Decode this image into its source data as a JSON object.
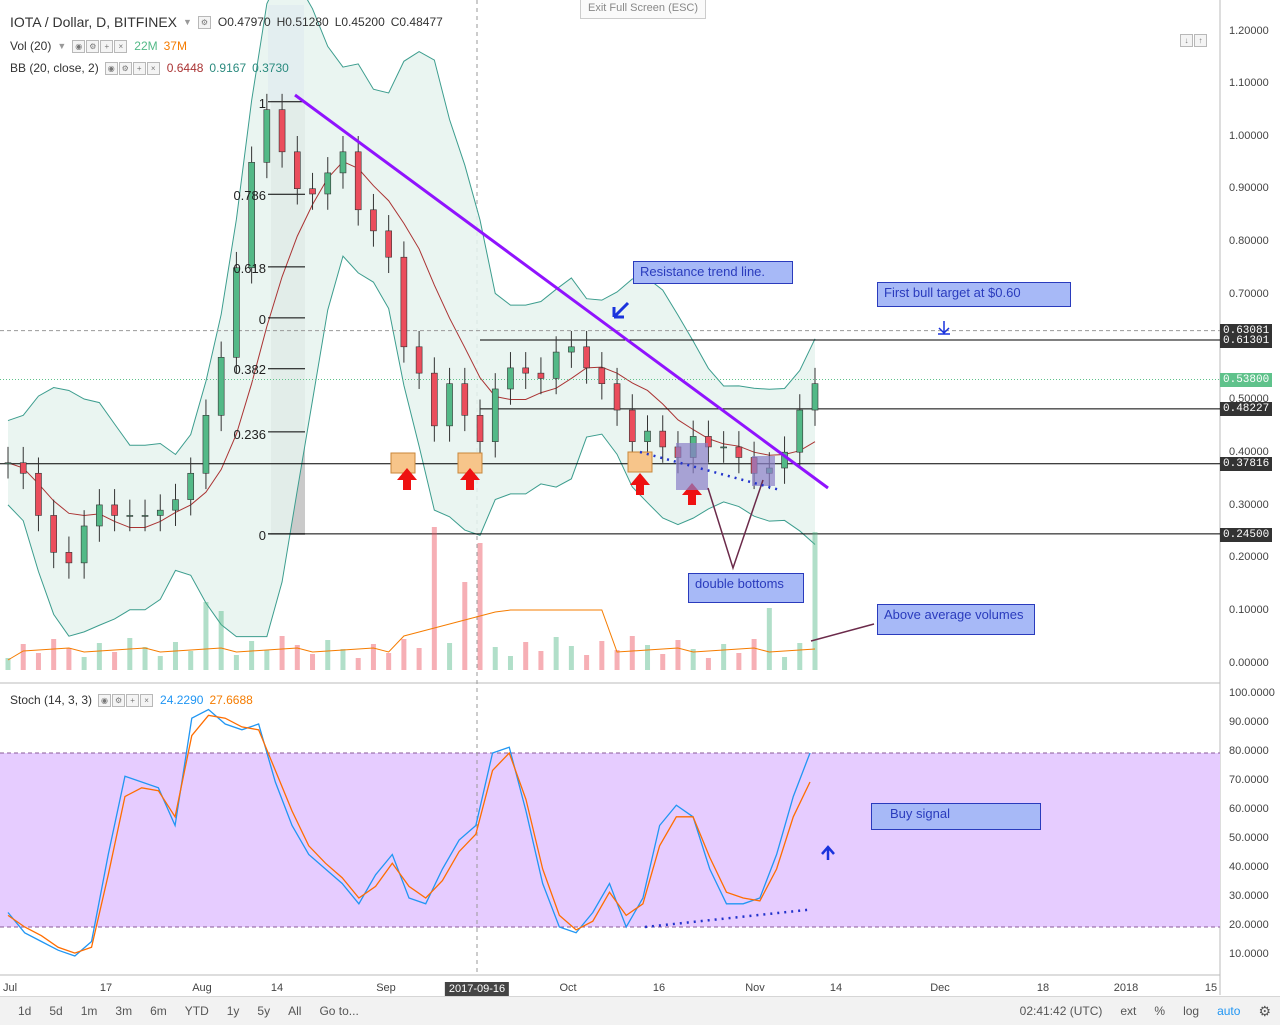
{
  "header": {
    "title": "IOTA / Dollar, D, BITFINEX",
    "open": "O0.47970",
    "high": "H0.51280",
    "low": "L0.45200",
    "close": "C0.48477",
    "vol_label": "Vol (20)",
    "vol_a": "22M",
    "vol_b": "37M",
    "bb_label": "BB (20, close, 2)",
    "bb_mid": "0.6448",
    "bb_up": "0.9167",
    "bb_low": "0.3730",
    "stoch_label": "Stoch (14, 3, 3)",
    "stoch_k": "24.2290",
    "stoch_d": "27.6688",
    "exit_fullscreen": "Exit Full Screen (ESC)"
  },
  "price_axis": {
    "ticks": [
      "1.20000",
      "1.10000",
      "1.00000",
      "0.90000",
      "0.80000",
      "0.70000",
      "0.50000",
      "0.40000",
      "0.30000",
      "0.20000",
      "0.10000",
      "0.00000"
    ],
    "boxes": [
      {
        "label": "0.63081",
        "color": "#333333"
      },
      {
        "label": "0.61301",
        "color": "#333333"
      },
      {
        "label": "0.53800",
        "color": "#5fc28b"
      },
      {
        "label": "0.48227",
        "color": "#333333"
      },
      {
        "label": "0.37816",
        "color": "#333333"
      },
      {
        "label": "0.24500",
        "color": "#333333"
      }
    ]
  },
  "stoch_axis": {
    "ticks": [
      "100.0000",
      "90.0000",
      "80.0000",
      "70.0000",
      "60.0000",
      "50.0000",
      "40.0000",
      "30.0000",
      "20.0000",
      "10.0000"
    ]
  },
  "time_axis": {
    "labels": [
      "Jul",
      "17",
      "Aug",
      "14",
      "Sep",
      "2017-09-16",
      "Oct",
      "16",
      "Nov",
      "14",
      "Dec",
      "18",
      "2018",
      "15"
    ]
  },
  "fib_labels": [
    "1",
    "0.786",
    "0.618",
    "0",
    "0.382",
    "0.236",
    "0"
  ],
  "annotations": {
    "resistance": "Resistance trend line.",
    "bull_target": "First bull target at $0.60",
    "double_bottoms": "double bottoms",
    "above_avg": "Above average volumes",
    "buy_signal": "Buy signal"
  },
  "bottom_bar": {
    "ranges": [
      "1d",
      "5d",
      "1m",
      "3m",
      "6m",
      "YTD",
      "1y",
      "5y",
      "All"
    ],
    "goto": "Go to...",
    "clock": "02:41:42 (UTC)",
    "ext": "ext",
    "pct": "%",
    "log": "log",
    "auto": "auto"
  },
  "colors": {
    "bull": "#53b987",
    "bear": "#eb4d5c",
    "trend": "#9013fe",
    "bb_fill": "#e6f3ee",
    "bb_line": "#3c9d8e",
    "stoch_k": "#2196f3",
    "stoch_d": "#ff6d00",
    "stoch_band": "#e6ccff",
    "annot": "#2a3bbd",
    "annot_fill": "#a7b9f7"
  },
  "chart_data": {
    "type": "candlestick",
    "title": "IOTA / Dollar, D, BITFINEX",
    "series": [
      {
        "name": "price_close_approx",
        "values": [
          0.38,
          0.36,
          0.28,
          0.21,
          0.19,
          0.26,
          0.3,
          0.28,
          0.28,
          0.28,
          0.29,
          0.31,
          0.36,
          0.47,
          0.58,
          0.75,
          0.95,
          1.05,
          0.97,
          0.9,
          0.89,
          0.93,
          0.97,
          0.86,
          0.82,
          0.77,
          0.6,
          0.55,
          0.45,
          0.53,
          0.47,
          0.42,
          0.52,
          0.56,
          0.55,
          0.54,
          0.59,
          0.6,
          0.56,
          0.53,
          0.48,
          0.42,
          0.44,
          0.41,
          0.39,
          0.43,
          0.41,
          0.41,
          0.39,
          0.36,
          0.37,
          0.4,
          0.48,
          0.53
        ]
      }
    ],
    "ylim": [
      0,
      1.2
    ],
    "stochastic": {
      "k_last": 24.229,
      "d_last": 27.6688,
      "overbought": 80,
      "oversold": 20
    }
  }
}
